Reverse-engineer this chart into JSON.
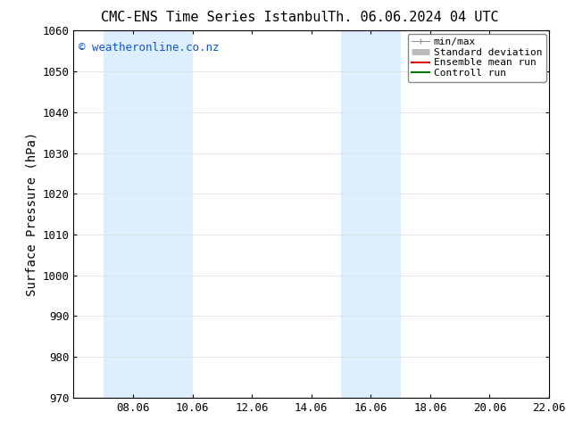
{
  "title_left": "CMC-ENS Time Series Istanbul",
  "title_right": "Th. 06.06.2024 04 UTC",
  "ylabel": "Surface Pressure (hPa)",
  "ylim": [
    970,
    1060
  ],
  "yticks": [
    970,
    980,
    990,
    1000,
    1010,
    1020,
    1030,
    1040,
    1050,
    1060
  ],
  "xlim_min": 0,
  "xlim_max": 16,
  "xtick_labels": [
    "08.06",
    "10.06",
    "12.06",
    "14.06",
    "16.06",
    "18.06",
    "20.06",
    "22.06"
  ],
  "xtick_positions": [
    2,
    4,
    6,
    8,
    10,
    12,
    14,
    16
  ],
  "shaded_bands": [
    {
      "xmin": 1.0,
      "xmax": 4.0,
      "color": "#ddeeff"
    },
    {
      "xmin": 9.0,
      "xmax": 11.0,
      "color": "#ddeeff"
    }
  ],
  "bg_color": "#ffffff",
  "plot_bg_color": "#ffffff",
  "grid_color": "#dddddd",
  "watermark_text": "© weatheronline.co.nz",
  "watermark_color": "#1155cc",
  "legend_items": [
    {
      "label": "min/max",
      "color": "#999999",
      "lw": 1.0
    },
    {
      "label": "Standard deviation",
      "color": "#bbbbbb",
      "lw": 5
    },
    {
      "label": "Ensemble mean run",
      "color": "#dd0000",
      "lw": 1.5
    },
    {
      "label": "Controll run",
      "color": "#007700",
      "lw": 1.5
    }
  ],
  "title_fontsize": 11,
  "axis_label_fontsize": 10,
  "tick_fontsize": 9,
  "legend_fontsize": 8,
  "watermark_fontsize": 9
}
